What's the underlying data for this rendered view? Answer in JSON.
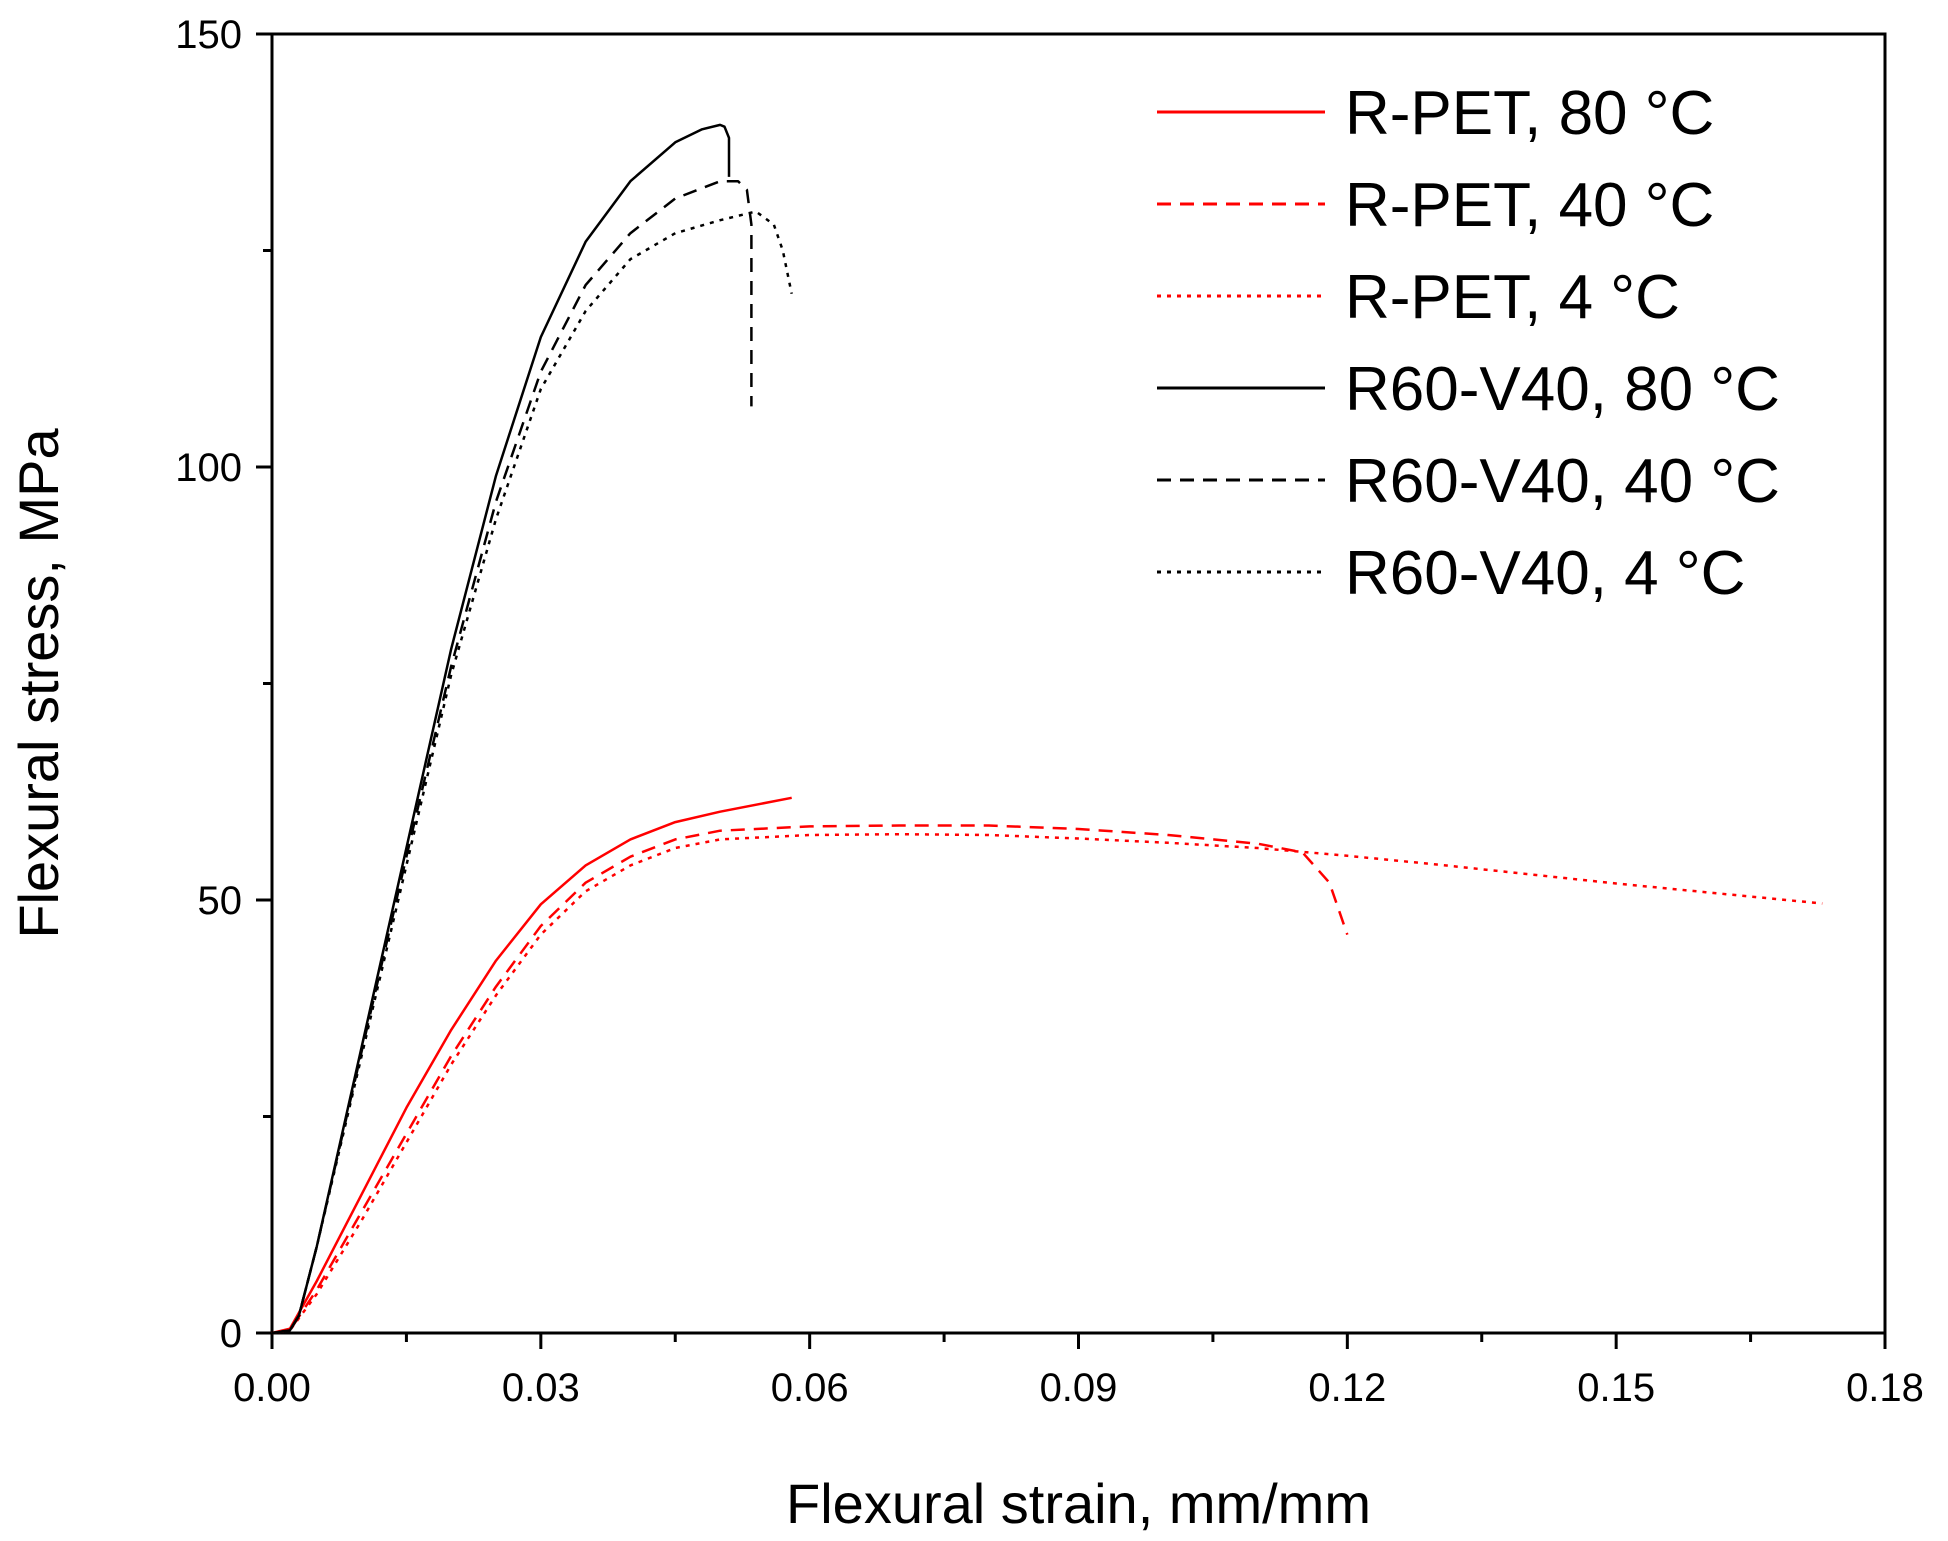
{
  "chart_data": {
    "type": "line",
    "title": "",
    "xlabel": "Flexural strain, mm/mm",
    "ylabel": "Flexural stress, MPa",
    "xlim": [
      0,
      0.18
    ],
    "ylim": [
      0,
      150
    ],
    "xticks": [
      0,
      0.03,
      0.06,
      0.09,
      0.12,
      0.15,
      0.18
    ],
    "xtick_labels": [
      "0.00",
      "0.03",
      "0.06",
      "0.09",
      "0.12",
      "0.15",
      "0.18"
    ],
    "yticks": [
      0,
      50,
      100,
      150
    ],
    "ytick_labels": [
      "0",
      "50",
      "100",
      "150"
    ],
    "grid": false,
    "legend_position": "top-right",
    "series": [
      {
        "name": "R-PET, 80 °C",
        "color": "#ff0000",
        "dash": "solid",
        "x": [
          0,
          0.002,
          0.005,
          0.01,
          0.015,
          0.02,
          0.025,
          0.03,
          0.035,
          0.04,
          0.045,
          0.05,
          0.055,
          0.058
        ],
        "y": [
          0,
          0.5,
          6,
          16,
          26,
          35,
          43,
          49.5,
          54,
          57,
          59,
          60.2,
          61.2,
          61.8
        ]
      },
      {
        "name": "R-PET, 40 °C",
        "color": "#ff0000",
        "dash": "dashed",
        "x": [
          0,
          0.002,
          0.005,
          0.01,
          0.015,
          0.02,
          0.025,
          0.03,
          0.035,
          0.04,
          0.045,
          0.05,
          0.06,
          0.07,
          0.08,
          0.09,
          0.1,
          0.11,
          0.115,
          0.118,
          0.12
        ],
        "y": [
          0,
          0.3,
          5,
          14,
          23,
          32,
          40,
          47,
          52,
          55,
          57,
          58,
          58.5,
          58.6,
          58.6,
          58.2,
          57.5,
          56.5,
          55.5,
          52,
          46
        ]
      },
      {
        "name": "R-PET, 4 °C",
        "color": "#ff0000",
        "dash": "dotted",
        "x": [
          0,
          0.002,
          0.005,
          0.01,
          0.015,
          0.02,
          0.025,
          0.03,
          0.035,
          0.04,
          0.045,
          0.05,
          0.06,
          0.07,
          0.08,
          0.09,
          0.1,
          0.11,
          0.12,
          0.13,
          0.14,
          0.15,
          0.16,
          0.173
        ],
        "y": [
          0,
          0.3,
          4.5,
          13,
          22,
          31,
          39,
          46,
          51,
          54,
          56,
          57,
          57.5,
          57.6,
          57.5,
          57.1,
          56.6,
          56,
          55.1,
          54.1,
          53,
          51.9,
          50.9,
          49.6
        ]
      },
      {
        "name": "R60-V40, 80 °C",
        "color": "#000000",
        "dash": "solid",
        "x": [
          0,
          0.002,
          0.003,
          0.005,
          0.01,
          0.015,
          0.02,
          0.025,
          0.03,
          0.035,
          0.04,
          0.045,
          0.048,
          0.05,
          0.0505,
          0.051,
          0.051
        ],
        "y": [
          0,
          0.3,
          2,
          10,
          33,
          56,
          79,
          99,
          115,
          126,
          133,
          137.5,
          139,
          139.5,
          139.3,
          138,
          133.5
        ]
      },
      {
        "name": "R60-V40, 40 °C",
        "color": "#000000",
        "dash": "dashed",
        "x": [
          0,
          0.002,
          0.003,
          0.005,
          0.01,
          0.015,
          0.02,
          0.025,
          0.03,
          0.035,
          0.04,
          0.045,
          0.05,
          0.052,
          0.053,
          0.0535,
          0.0535
        ],
        "y": [
          0,
          0.3,
          2,
          10,
          32.5,
          55,
          77,
          96,
          111,
          121,
          127,
          131,
          133,
          133,
          132,
          128,
          107
        ]
      },
      {
        "name": "R60-V40, 4 °C",
        "color": "#000000",
        "dash": "dotted",
        "x": [
          0,
          0.002,
          0.003,
          0.005,
          0.01,
          0.015,
          0.02,
          0.025,
          0.03,
          0.035,
          0.04,
          0.045,
          0.05,
          0.054,
          0.056,
          0.057,
          0.058
        ],
        "y": [
          0,
          0.3,
          2,
          10,
          32,
          54,
          76,
          94,
          109,
          118,
          124,
          127,
          128.5,
          129.5,
          128,
          125,
          120
        ]
      }
    ]
  }
}
